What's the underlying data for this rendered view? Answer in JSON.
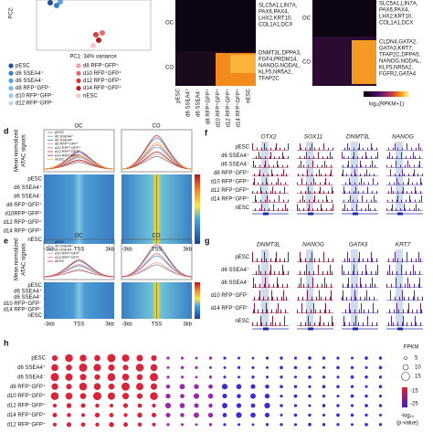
{
  "pca": {
    "y_label": "PC2:",
    "x_label": "PC1: 34% variance",
    "legend": [
      {
        "name": "pESC",
        "color": "#1f4e9c"
      },
      {
        "name": "d6 SSEA4⁺",
        "color": "#3a7cc9"
      },
      {
        "name": "d6 SSEA4⁻",
        "color": "#5aa0dd"
      },
      {
        "name": "d8 RFP⁺GFP⁻",
        "color": "#7fb8e6"
      },
      {
        "name": "d10 RFP⁺GFP⁻",
        "color": "#9ccbee"
      },
      {
        "name": "d12 RFP⁺GFP⁻",
        "color": "#bcdcf3"
      },
      {
        "name": "d8 RFP⁺GFP⁺",
        "color": "#f2a0a0"
      },
      {
        "name": "d10 RFP⁺GFP⁺",
        "color": "#e86a6a"
      },
      {
        "name": "d12 RFP⁺GFP⁺",
        "color": "#d83a3a"
      },
      {
        "name": "d14 RFP⁺GFP⁺",
        "color": "#b51e1e"
      },
      {
        "name": "nESC",
        "color": "#f6c7c7"
      }
    ]
  },
  "heatmap_mid": {
    "rows": [
      "OC",
      "CO"
    ],
    "columns": [
      "pESC",
      "d6 SSEA4⁺",
      "d6 SSEA4⁻",
      "d8 RFP⁺GFP⁺",
      "d10 RFP⁺GFP⁺",
      "d12 RFP⁺GFP⁺",
      "d14 RFP⁺GFP⁺",
      "nESC"
    ],
    "oc_genes": [
      "SLC5A1,LIN7A,",
      "PAX6,PAX4,",
      "LHX2,KRT10,",
      "COL1A1,DCX"
    ],
    "co_genes": [
      "DNMT3L,DPPA3,",
      "FGF4,PRDM14,",
      "NANOG,NODAL,",
      "KLF5,NR5A2,",
      "TFAP2C"
    ]
  },
  "heatmap_right": {
    "rows": [
      "OC",
      "CO"
    ],
    "oc_genes": [
      "SLC5A1,LIN7A,",
      "PAX6,PAX4,",
      "LHX2,KRT10,",
      "COL1A1,DCX"
    ],
    "co_genes": [
      "CLDN4,GATA2,",
      "GATA3,KRT7,",
      "TFAP2C,DPPA5,",
      "NANOG,NODAL,",
      "KLF5,NR5A2,",
      "FGFR2,GATA4"
    ],
    "colorbar_label": "log₂(RPKM+1)"
  },
  "panel_d": {
    "letter": "d",
    "y_label": [
      "Mean normalized",
      "ATAC signals"
    ],
    "groups": [
      "OC",
      "CO"
    ],
    "legend": [
      "pESC",
      "d6 SSEA4⁺",
      "d6 SSEA4⁻",
      "d8 RFP⁺GFP⁺",
      "d10 RFP⁺GFP⁺",
      "d12 RFP⁺GFP⁺",
      "d14 RFP⁺GFP⁺",
      "nESC"
    ],
    "rows": [
      "pESC",
      "d6 SSEA4⁺",
      "d6 SSEA4⁻",
      "d8 RFP⁺GFP⁺",
      "d10RFP⁺GFP⁺",
      "d12 RFP⁺GFP⁺",
      "d14 RFP⁺GFP⁺",
      "nESC"
    ],
    "x_ticks": [
      "-3kb",
      "TSS",
      "3kb"
    ]
  },
  "panel_e": {
    "letter": "e",
    "y_label": [
      "Mean normalized",
      "ATAC signals"
    ],
    "groups": [
      "OC",
      "CO"
    ],
    "legend": [
      "pESC",
      "d6 SSEA4⁺",
      "d6 SSEA4⁻",
      "d10 RFP⁺GFP⁻",
      "d14 RFP⁺GFP⁻",
      "nESC"
    ],
    "rows": [
      "pESC",
      "d6 SSEA4⁺",
      "d6 SSEA4⁻",
      "d10 RFP⁺GFP⁻",
      "d14 RFP⁺GFP⁻",
      "nESC"
    ],
    "x_ticks": [
      "-3kb",
      "TSS",
      "3kb"
    ]
  },
  "panel_f": {
    "letter": "f",
    "genes": [
      "OTX2",
      "SOX11",
      "DNMT3L",
      "NANOG"
    ],
    "rows": [
      "pESC",
      "d6 SSEA4⁺",
      "d6 SSEA4⁻",
      "d8 RFP⁺GFP⁺",
      "d10 RFP⁺GFP⁺",
      "d12 RFP⁺GFP⁺",
      "d14 RFP⁺GFP⁺",
      "nESC"
    ]
  },
  "panel_g": {
    "letter": "g",
    "genes": [
      "DNMT3L",
      "NANOG",
      "GATA3",
      "KRT7"
    ],
    "rows": [
      "pESC",
      "d6 SSEA4⁺",
      "d6 SSEA4⁻",
      "d10 RFP⁺GFP⁻",
      "d14 RFP⁺GFP⁻",
      "nESC"
    ]
  },
  "panel_h": {
    "letter": "h",
    "rows": [
      "pESC",
      "d6 SSEA4⁺",
      "d6 SSEA4⁻",
      "d8 RFP⁺GFP⁺",
      "d10 RFP⁺GFP⁺",
      "d12 RFP⁺GFP⁺",
      "d14 RFP⁺GFP⁺",
      "d12 RFP⁺GFP⁺"
    ],
    "size_title": "FPKM",
    "size_labels": [
      "5",
      "10",
      "15"
    ],
    "color_title": [
      "-log₁₀",
      "(p-value)"
    ],
    "color_labels": [
      "-15",
      "-25"
    ]
  }
}
